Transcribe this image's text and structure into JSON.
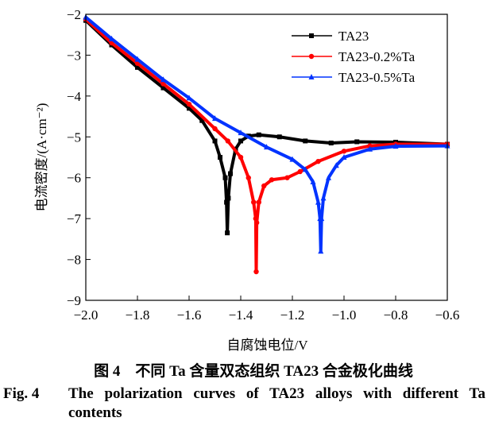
{
  "chart_data": {
    "type": "line",
    "xlabel": "自腐蚀电位/V",
    "ylabel": "电流密度/(A·cm⁻²)",
    "xlim": [
      -2.0,
      -0.6
    ],
    "ylim": [
      -9,
      -2
    ],
    "xticks": [
      -2.0,
      -1.8,
      -1.6,
      -1.4,
      -1.2,
      -1.0,
      -0.8,
      -0.6
    ],
    "xtick_labels": [
      "−2.0",
      "−1.8",
      "−1.6",
      "−1.4",
      "−1.2",
      "−1.0",
      "−0.8",
      "−0.6"
    ],
    "yticks": [
      -2,
      -3,
      -4,
      -5,
      -6,
      -7,
      -8,
      -9
    ],
    "ytick_labels": [
      "−2",
      "−3",
      "−4",
      "−5",
      "−6",
      "−7",
      "−8",
      "−9"
    ],
    "grid": false,
    "legend_position": "top-right",
    "series": [
      {
        "name": "TA23",
        "color": "#000000",
        "marker": "square",
        "x": [
          -2.0,
          -1.9,
          -1.8,
          -1.7,
          -1.6,
          -1.55,
          -1.5,
          -1.48,
          -1.46,
          -1.455,
          -1.452,
          -1.448,
          -1.44,
          -1.42,
          -1.4,
          -1.37,
          -1.33,
          -1.25,
          -1.15,
          -1.05,
          -0.95,
          -0.8,
          -0.6
        ],
        "y": [
          -2.15,
          -2.75,
          -3.3,
          -3.8,
          -4.3,
          -4.6,
          -5.1,
          -5.5,
          -6.0,
          -6.6,
          -7.35,
          -6.5,
          -5.9,
          -5.3,
          -5.1,
          -4.98,
          -4.95,
          -5.0,
          -5.1,
          -5.15,
          -5.12,
          -5.13,
          -5.18
        ]
      },
      {
        "name": "TA23-0.2%Ta",
        "color": "#ff0000",
        "marker": "circle",
        "x": [
          -2.0,
          -1.9,
          -1.8,
          -1.7,
          -1.6,
          -1.5,
          -1.45,
          -1.4,
          -1.37,
          -1.35,
          -1.342,
          -1.34,
          -1.338,
          -1.33,
          -1.31,
          -1.28,
          -1.22,
          -1.17,
          -1.1,
          -1.0,
          -0.9,
          -0.8,
          -0.6
        ],
        "y": [
          -2.12,
          -2.7,
          -3.2,
          -3.7,
          -4.2,
          -4.8,
          -5.1,
          -5.5,
          -6.0,
          -6.6,
          -7.0,
          -8.3,
          -7.1,
          -6.6,
          -6.2,
          -6.05,
          -6.0,
          -5.85,
          -5.6,
          -5.35,
          -5.22,
          -5.18,
          -5.18
        ]
      },
      {
        "name": "TA23-0.5%Ta",
        "color": "#0033ff",
        "marker": "triangle",
        "x": [
          -2.0,
          -1.9,
          -1.8,
          -1.7,
          -1.6,
          -1.5,
          -1.4,
          -1.3,
          -1.2,
          -1.15,
          -1.12,
          -1.1,
          -1.093,
          -1.09,
          -1.087,
          -1.08,
          -1.06,
          -1.03,
          -1.0,
          -0.9,
          -0.8,
          -0.6
        ],
        "y": [
          -2.07,
          -2.6,
          -3.1,
          -3.6,
          -4.05,
          -4.55,
          -4.9,
          -5.25,
          -5.55,
          -5.8,
          -6.1,
          -6.6,
          -7.0,
          -7.8,
          -7.0,
          -6.5,
          -6.0,
          -5.7,
          -5.5,
          -5.3,
          -5.23,
          -5.22
        ]
      }
    ]
  },
  "caption": {
    "cn": "图 4　不同 Ta 含量双态组织 TA23 合金极化曲线",
    "en_label": "Fig. 4",
    "en_text": "The polarization curves of TA23 alloys with different Ta contents"
  }
}
